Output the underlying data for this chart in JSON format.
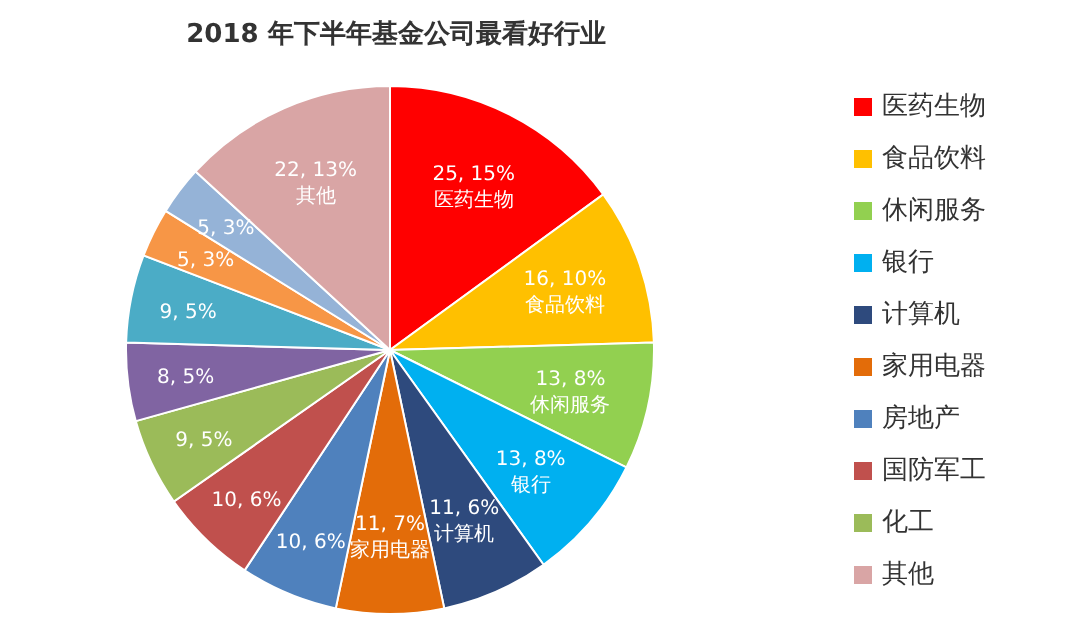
{
  "chart_data": {
    "type": "pie",
    "title": "2018 年下半年基金公司最看好行业",
    "categories": [
      "医药生物",
      "食品饮料",
      "休闲服务",
      "银行",
      "计算机",
      "家用电器",
      "房地产",
      "国防军工",
      "化工",
      null,
      null,
      null,
      null,
      "其他"
    ],
    "values": [
      25,
      16,
      13,
      13,
      11,
      11,
      10,
      10,
      9,
      8,
      9,
      5,
      5,
      22
    ],
    "colors": [
      "#ff0000",
      "#ffc000",
      "#92d050",
      "#00b0f0",
      "#2e4a7d",
      "#e36c09",
      "#4f81bd",
      "#c0504d",
      "#9bbb59",
      "#8064a2",
      "#4bacc6",
      "#f79646",
      "#95b3d7",
      "#d9a5a5"
    ],
    "value_labels": [
      "25, 15%\n医药生物",
      "16, 10%\n食品饮料",
      "13, 8%\n休闲服务",
      "13, 8%\n银行",
      "11, 6%\n计算机",
      "11, 7%\n家用电器",
      "10, 6%",
      "10, 6%",
      "9, 5%",
      "8, 5%",
      "9, 5%",
      "5, 3%",
      "5, 3%",
      "22, 13%\n其他"
    ],
    "legend": "right"
  }
}
